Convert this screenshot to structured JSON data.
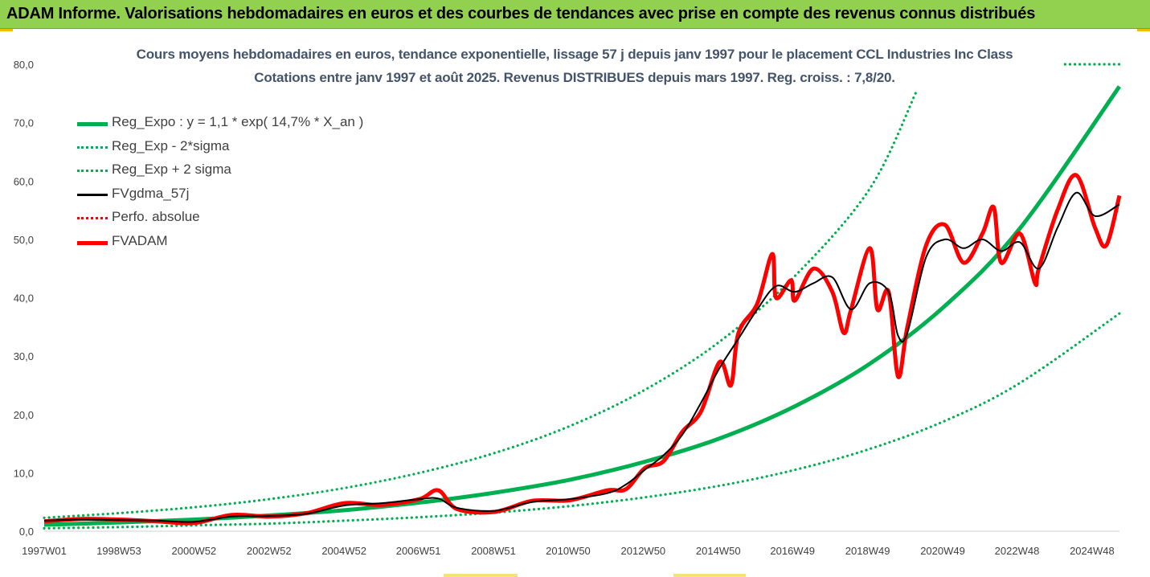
{
  "banner": {
    "title": "ADAM Informe. Valorisations hebdomadaires en euros et des courbes de tendances avec prise en compte des revenus connus distribués"
  },
  "colors": {
    "banner_bg": "#92d050",
    "reg_green": "#00b050",
    "fvgdma_black": "#000000",
    "fvadam_red": "#ff0000",
    "title_color": "#44546a"
  },
  "chart_data": {
    "type": "line",
    "title": "Cours moyens hebdomadaires en euros, tendance exponentielle, lissage 57 j depuis janv 1997 pour le placement CCL Industries Inc Class",
    "subtitle": "Cotations entre janv 1997 et août 2025.  Revenus DISTRIBUES depuis mars 1997. Reg. croiss. : 7,8/20.",
    "ylim": [
      0,
      80
    ],
    "yticks": [
      "0,0",
      "10,0",
      "20,0",
      "30,0",
      "40,0",
      "50,0",
      "60,0",
      "70,0",
      "80,0"
    ],
    "xlim": [
      1997.0,
      2025.65
    ],
    "xticks": [
      {
        "label": "1997W01",
        "x": 1997.0
      },
      {
        "label": "1998W53",
        "x": 1998.99
      },
      {
        "label": "2000W52",
        "x": 2000.99
      },
      {
        "label": "2002W52",
        "x": 2002.99
      },
      {
        "label": "2004W52",
        "x": 2004.99
      },
      {
        "label": "2006W51",
        "x": 2006.97
      },
      {
        "label": "2008W51",
        "x": 2008.97
      },
      {
        "label": "2010W50",
        "x": 2010.96
      },
      {
        "label": "2012W50",
        "x": 2012.96
      },
      {
        "label": "2014W50",
        "x": 2014.96
      },
      {
        "label": "2016W49",
        "x": 2016.94
      },
      {
        "label": "2018W49",
        "x": 2018.94
      },
      {
        "label": "2020W49",
        "x": 2020.94
      },
      {
        "label": "2022W48",
        "x": 2022.92
      },
      {
        "label": "2024W48",
        "x": 2024.92
      }
    ],
    "legend_placement": "top-left",
    "grid": false,
    "series": [
      {
        "name": "Reg_Expo : y = 1,1 * exp( 14,7% *  X_an )",
        "style": "solid-thick",
        "color": "#00b050",
        "x": [
          1997.0,
          1999.0,
          2001.0,
          2003.0,
          2005.0,
          2007.0,
          2009.0,
          2011.0,
          2013.0,
          2015.0,
          2017.0,
          2019.0,
          2021.0,
          2023.0,
          2025.65
        ],
        "values": [
          1.1,
          1.5,
          2.0,
          2.7,
          3.6,
          4.9,
          6.6,
          8.8,
          11.9,
          15.9,
          21.4,
          28.7,
          38.6,
          51.9,
          76.2
        ]
      },
      {
        "name": "Reg_Exp - 2*sigma",
        "style": "dotted",
        "color": "#00b050",
        "x": [
          1997.0,
          1999.0,
          2001.0,
          2003.0,
          2005.0,
          2007.0,
          2009.0,
          2011.0,
          2013.0,
          2015.0,
          2017.0,
          2019.0,
          2021.0,
          2023.0,
          2025.65
        ],
        "values": [
          0.5,
          0.7,
          1.0,
          1.3,
          1.8,
          2.4,
          3.2,
          4.3,
          5.8,
          7.8,
          10.5,
          14.1,
          18.9,
          25.4,
          37.3
        ]
      },
      {
        "name": "Reg_Exp + 2 sigma",
        "style": "dotted",
        "color": "#00b050",
        "x": [
          1997.0,
          1999.0,
          2001.0,
          2003.0,
          2005.0,
          2007.0,
          2009.0,
          2011.0,
          2013.0,
          2015.0,
          2017.0,
          2019.0,
          2020.25
        ],
        "values": [
          2.3,
          3.1,
          4.1,
          5.5,
          7.4,
          10.0,
          13.4,
          18.0,
          24.2,
          32.5,
          43.7,
          58.7,
          75.5
        ]
      },
      {
        "name": "FVgdma_57j",
        "style": "solid",
        "color": "#000000",
        "x": [
          1997.0,
          1998.0,
          1999.0,
          2000.0,
          2001.0,
          2002.0,
          2003.0,
          2004.0,
          2005.0,
          2006.0,
          2007.0,
          2007.5,
          2008.0,
          2009.0,
          2010.0,
          2011.0,
          2012.0,
          2012.5,
          2013.0,
          2013.5,
          2014.0,
          2014.5,
          2015.0,
          2015.5,
          2016.0,
          2016.5,
          2017.0,
          2017.5,
          2018.0,
          2018.5,
          2019.0,
          2019.5,
          2019.75,
          2020.0,
          2020.5,
          2021.0,
          2021.5,
          2022.0,
          2022.5,
          2023.0,
          2023.5,
          2024.0,
          2024.5,
          2025.0,
          2025.65
        ],
        "values": [
          1.8,
          2.0,
          1.9,
          1.8,
          1.6,
          2.5,
          2.6,
          3.0,
          4.4,
          4.8,
          5.5,
          5.6,
          4.0,
          3.5,
          5.0,
          5.5,
          6.5,
          8.0,
          10.5,
          13.0,
          16.5,
          22.0,
          28.0,
          33.0,
          38.0,
          42.0,
          41.0,
          42.5,
          43.5,
          38.0,
          42.5,
          41.0,
          33.5,
          34.0,
          47.0,
          50.0,
          48.5,
          50.0,
          48.0,
          49.5,
          45.0,
          52.0,
          58.0,
          54.0,
          56.0
        ]
      },
      {
        "name": "Perfo. absolue",
        "style": "dotted",
        "color": "#ff0000",
        "x": [],
        "values": []
      },
      {
        "name": "FVADAM",
        "style": "solid-thick",
        "color": "#ff0000",
        "x": [
          1997.0,
          1998.0,
          1999.0,
          2000.0,
          2001.0,
          2002.0,
          2003.0,
          2004.0,
          2005.0,
          2006.0,
          2007.0,
          2007.5,
          2008.0,
          2009.0,
          2010.0,
          2011.0,
          2012.0,
          2012.5,
          2013.0,
          2013.5,
          2014.0,
          2014.5,
          2015.0,
          2015.3,
          2015.5,
          2016.0,
          2016.4,
          2016.5,
          2016.9,
          2017.0,
          2017.5,
          2018.0,
          2018.3,
          2018.5,
          2019.0,
          2019.2,
          2019.5,
          2019.75,
          2020.0,
          2020.5,
          2021.0,
          2021.5,
          2022.0,
          2022.3,
          2022.5,
          2023.0,
          2023.4,
          2023.5,
          2024.0,
          2024.5,
          2025.0,
          2025.3,
          2025.65
        ],
        "values": [
          1.7,
          2.1,
          2.0,
          1.7,
          1.4,
          2.8,
          2.5,
          3.1,
          4.8,
          4.5,
          5.5,
          7.0,
          3.8,
          3.3,
          5.2,
          5.3,
          7.0,
          7.2,
          10.8,
          12.0,
          17.0,
          20.5,
          29.0,
          25.0,
          34.0,
          39.0,
          47.5,
          40.0,
          43.0,
          39.5,
          45.0,
          41.0,
          34.0,
          38.0,
          48.5,
          38.0,
          41.0,
          26.5,
          35.0,
          49.0,
          52.5,
          46.0,
          51.0,
          55.5,
          46.0,
          51.0,
          42.5,
          45.0,
          55.0,
          61.0,
          52.0,
          49.0,
          57.5
        ]
      }
    ]
  },
  "legend": {
    "items": [
      {
        "label": "Reg_Expo : y = 1,1 * exp( 14,7% *  X_an )"
      },
      {
        "label": "Reg_Exp - 2*sigma"
      },
      {
        "label": "Reg_Exp + 2 sigma"
      },
      {
        "label": "FVgdma_57j"
      },
      {
        "label": "Perfo. absolue"
      },
      {
        "label": "FVADAM"
      }
    ]
  }
}
